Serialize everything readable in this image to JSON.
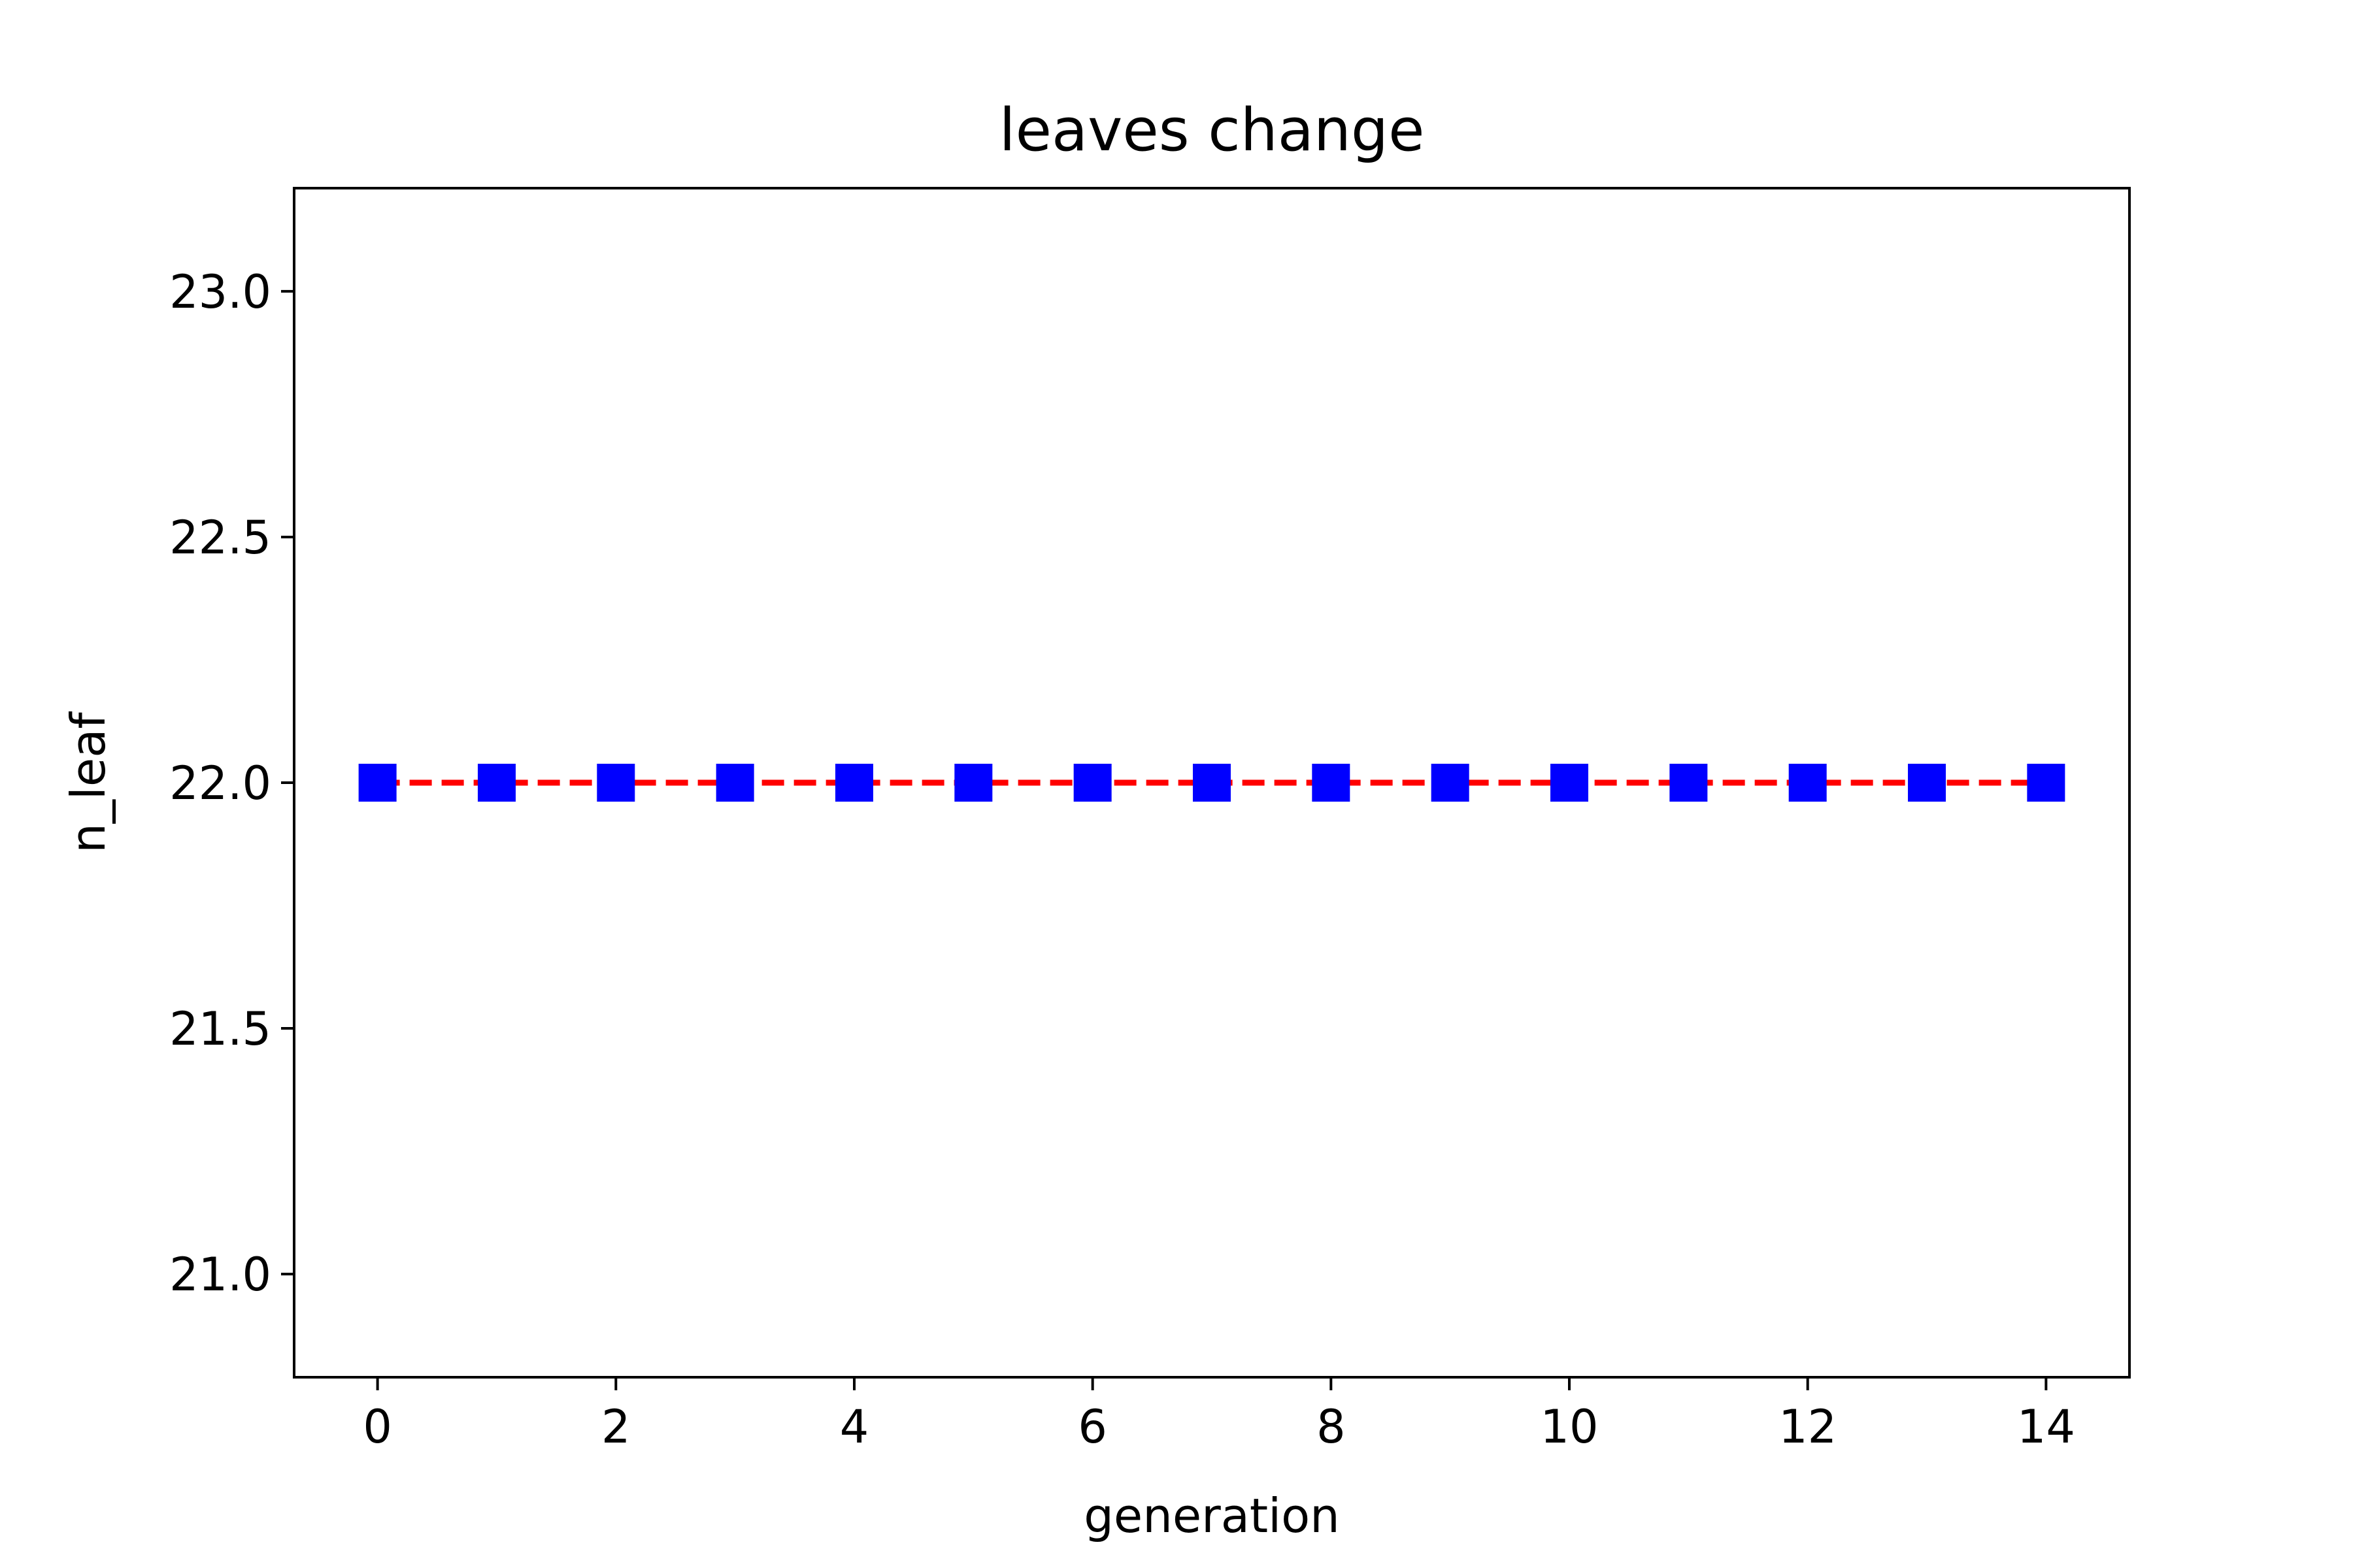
{
  "chart_data": {
    "type": "line",
    "title": "leaves change",
    "xlabel": "generation",
    "ylabel": "n_leaf",
    "x": [
      0,
      1,
      2,
      3,
      4,
      5,
      6,
      7,
      8,
      9,
      10,
      11,
      12,
      13,
      14
    ],
    "series": [
      {
        "values": [
          22,
          22,
          22,
          22,
          22,
          22,
          22,
          22,
          22,
          22,
          22,
          22,
          22,
          22,
          22
        ],
        "line_color": "#ff0000",
        "line_style": "dashed",
        "marker": "square",
        "marker_color": "#0000ff"
      }
    ],
    "xlim": [
      -0.7,
      14.7
    ],
    "ylim": [
      20.79,
      23.21
    ],
    "xticks": [
      0,
      2,
      4,
      6,
      8,
      10,
      12,
      14
    ],
    "yticks": [
      21.0,
      21.5,
      22.0,
      22.5,
      23.0
    ],
    "xtick_labels": [
      "0",
      "2",
      "4",
      "6",
      "8",
      "10",
      "12",
      "14"
    ],
    "ytick_labels": [
      "21.0",
      "21.5",
      "22.0",
      "22.5",
      "23.0"
    ],
    "grid": false,
    "legend": "none"
  }
}
